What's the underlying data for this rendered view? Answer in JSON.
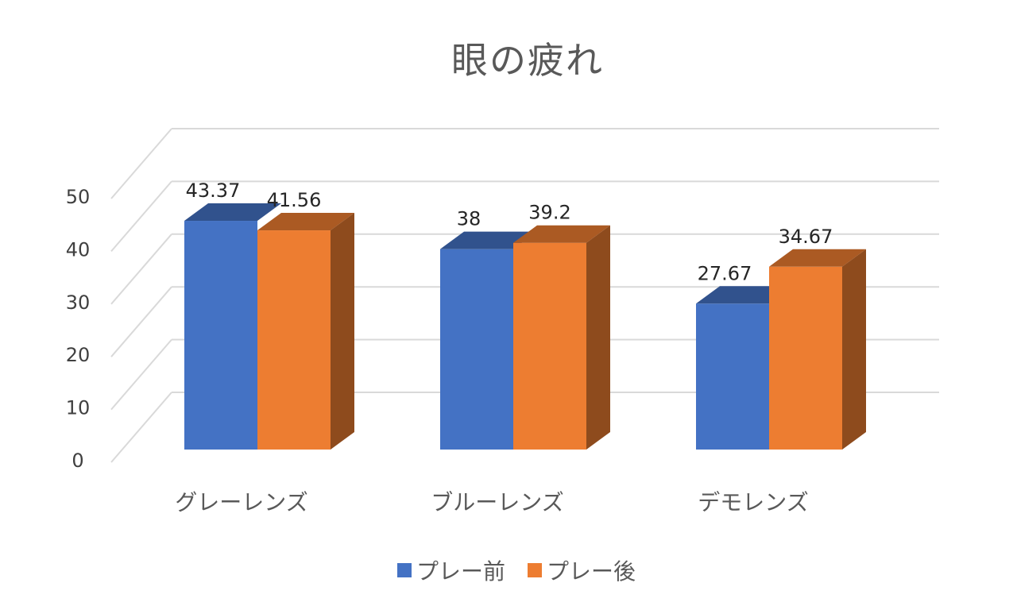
{
  "chart_data": {
    "type": "bar",
    "title": "眼の疲れ",
    "categories": [
      "グレーレンズ",
      "ブルーレンズ",
      "デモレンズ"
    ],
    "series": [
      {
        "name": "プレー前",
        "values": [
          43.37,
          38,
          27.67
        ],
        "labels": [
          "43.37",
          "38",
          "27.67"
        ],
        "color": "#4472C4"
      },
      {
        "name": "プレー後",
        "values": [
          41.56,
          39.2,
          34.67
        ],
        "labels": [
          "41.56",
          "39.2",
          "34.67"
        ],
        "color": "#ED7D31"
      }
    ],
    "ylim": [
      0,
      50
    ],
    "yticks": [
      "0",
      "10",
      "20",
      "30",
      "40",
      "50"
    ],
    "grid": true,
    "legend_position": "bottom",
    "style": "3d-clustered-column"
  }
}
